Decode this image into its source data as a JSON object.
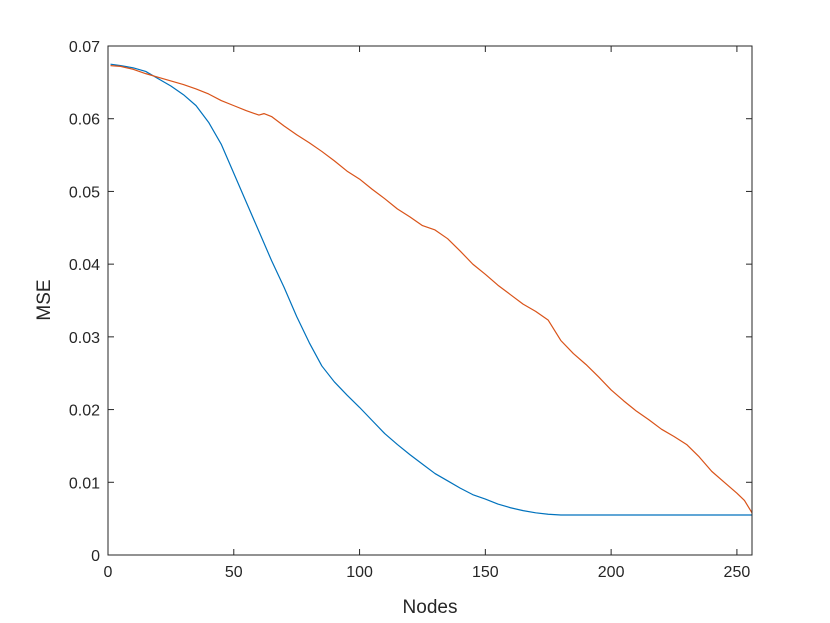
{
  "chart_data": {
    "type": "line",
    "title": "",
    "xlabel": "Nodes",
    "ylabel": "MSE",
    "xlim": [
      0,
      256
    ],
    "ylim": [
      0,
      0.07
    ],
    "grid": false,
    "box": true,
    "x_ticks": [
      0,
      50,
      100,
      150,
      200,
      250
    ],
    "y_ticks": [
      0,
      0.01,
      0.02,
      0.03,
      0.04,
      0.05,
      0.06,
      0.07
    ],
    "x_tick_labels": [
      "0",
      "50",
      "100",
      "150",
      "200",
      "250"
    ],
    "y_tick_labels": [
      "0",
      "0.01",
      "0.02",
      "0.03",
      "0.04",
      "0.05",
      "0.06",
      "0.07"
    ],
    "series": [
      {
        "color": "#0072BD",
        "x": [
          1,
          5,
          10,
          15,
          20,
          25,
          30,
          35,
          40,
          45,
          50,
          55,
          60,
          65,
          70,
          75,
          80,
          85,
          90,
          95,
          100,
          105,
          110,
          115,
          120,
          125,
          130,
          135,
          140,
          145,
          150,
          155,
          160,
          165,
          170,
          175,
          180,
          190,
          200,
          210,
          220,
          230,
          240,
          250,
          256
        ],
        "y": [
          0.0675,
          0.0673,
          0.067,
          0.0665,
          0.0655,
          0.0645,
          0.0633,
          0.0618,
          0.0595,
          0.0565,
          0.0525,
          0.0485,
          0.0445,
          0.0405,
          0.0368,
          0.0328,
          0.0292,
          0.026,
          0.0238,
          0.022,
          0.0203,
          0.0185,
          0.0167,
          0.0152,
          0.0138,
          0.0125,
          0.0112,
          0.0102,
          0.0092,
          0.0083,
          0.0077,
          0.007,
          0.0065,
          0.0061,
          0.0058,
          0.0056,
          0.0055,
          0.0055,
          0.0055,
          0.0055,
          0.0055,
          0.0055,
          0.0055,
          0.0055,
          0.0055
        ]
      },
      {
        "color": "#D95319",
        "x": [
          1,
          5,
          10,
          15,
          20,
          25,
          30,
          35,
          40,
          45,
          50,
          55,
          60,
          62,
          65,
          70,
          75,
          80,
          85,
          90,
          95,
          100,
          105,
          110,
          115,
          120,
          125,
          130,
          135,
          140,
          145,
          150,
          155,
          160,
          165,
          170,
          175,
          180,
          185,
          190,
          195,
          200,
          205,
          210,
          215,
          220,
          225,
          230,
          235,
          240,
          245,
          250,
          253,
          256
        ],
        "y": [
          0.0673,
          0.0672,
          0.0668,
          0.0662,
          0.0657,
          0.0652,
          0.0647,
          0.0641,
          0.0634,
          0.0625,
          0.0618,
          0.0611,
          0.0605,
          0.0607,
          0.0603,
          0.059,
          0.0578,
          0.0567,
          0.0555,
          0.0542,
          0.0528,
          0.0517,
          0.0503,
          0.049,
          0.0476,
          0.0465,
          0.0453,
          0.0447,
          0.0435,
          0.0418,
          0.04,
          0.0386,
          0.0371,
          0.0358,
          0.0345,
          0.0335,
          0.0323,
          0.0295,
          0.0277,
          0.0262,
          0.0245,
          0.0227,
          0.0212,
          0.0198,
          0.0186,
          0.0173,
          0.0163,
          0.0152,
          0.0135,
          0.0115,
          0.01,
          0.0085,
          0.0075,
          0.0058
        ]
      }
    ]
  }
}
